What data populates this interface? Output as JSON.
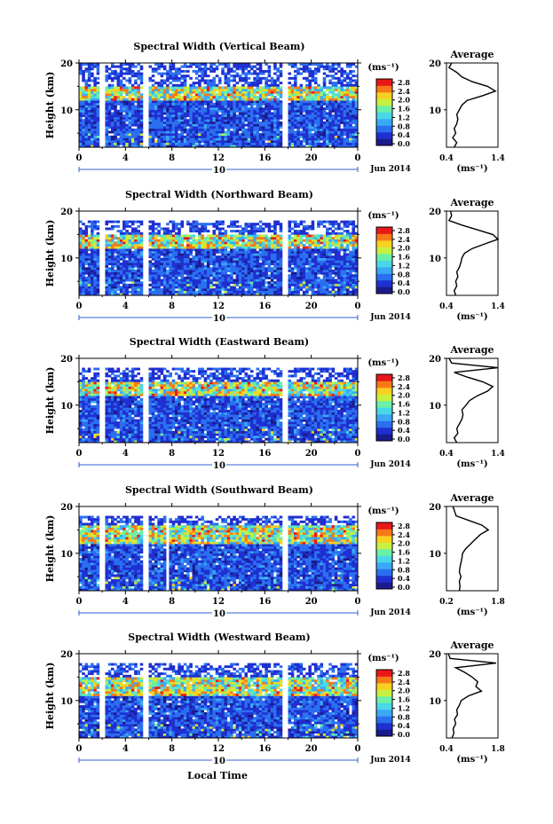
{
  "xaxis_label": "Local Time",
  "date_label": "Jun 2014",
  "day_label": "10",
  "x_ticks": [
    "0",
    "4",
    "8",
    "12",
    "16",
    "20",
    "0"
  ],
  "y_label": "Height (km)",
  "y_ticks": [
    "20",
    "10"
  ],
  "colorbar_unit": "(ms⁻¹)",
  "colorbar_ticks": [
    "2.8",
    "2.4",
    "2.0",
    "1.6",
    "1.2",
    "0.8",
    "0.4",
    "0.0"
  ],
  "avg_title": "Average",
  "avg_xunit": "(ms⁻¹)",
  "colors": {
    "colormap": [
      "#1a1a8a",
      "#1f2fd0",
      "#2a6ff0",
      "#3aa8f5",
      "#48d8e8",
      "#6af0a8",
      "#c8f040",
      "#f8d020",
      "#f87818",
      "#e81818"
    ],
    "background": "#ffffff",
    "axis": "#000000",
    "day_marker": "#3060d0"
  },
  "chart_data": [
    {
      "type": "heatmap",
      "title": "Spectral Width (Vertical Beam)",
      "xlabel": "Local Time",
      "ylabel": "Height (km)",
      "x_range_hours": [
        0,
        24
      ],
      "y_range_km": [
        2,
        20
      ],
      "color_range_ms": [
        0.0,
        3.0
      ],
      "data_gaps_hours": [
        [
          1.8,
          2.3
        ],
        [
          5.5,
          6.0
        ],
        [
          17.5,
          17.9
        ]
      ],
      "enhanced_layer_km": [
        12,
        15
      ],
      "top_of_data_km": 20,
      "average_profile": {
        "title": "Average",
        "xlabel": "(ms⁻¹)",
        "xlim": [
          0.4,
          1.4
        ],
        "xticks": [
          "0.4",
          "1.4"
        ],
        "height_km": [
          2,
          3,
          4,
          5,
          6,
          7,
          8,
          9,
          10,
          11,
          12,
          13,
          14,
          15,
          16,
          17,
          18,
          19,
          20
        ],
        "width_ms": [
          0.55,
          0.6,
          0.52,
          0.58,
          0.55,
          0.6,
          0.62,
          0.6,
          0.65,
          0.7,
          0.8,
          1.1,
          1.35,
          1.2,
          0.9,
          0.7,
          0.6,
          0.45,
          0.5
        ]
      }
    },
    {
      "type": "heatmap",
      "title": "Spectral Width (Northward Beam)",
      "xlabel": "Local Time",
      "ylabel": "Height (km)",
      "x_range_hours": [
        0,
        24
      ],
      "y_range_km": [
        2,
        20
      ],
      "color_range_ms": [
        0.0,
        3.0
      ],
      "data_gaps_hours": [
        [
          1.8,
          2.3
        ],
        [
          5.5,
          6.0
        ],
        [
          17.5,
          17.9
        ]
      ],
      "enhanced_layer_km": [
        12,
        15
      ],
      "top_of_data_km": 18,
      "average_profile": {
        "title": "Average",
        "xlabel": "(ms⁻¹)",
        "xlim": [
          0.4,
          1.4
        ],
        "xticks": [
          "0.4",
          "1.4"
        ],
        "height_km": [
          2,
          3,
          4,
          5,
          6,
          7,
          8,
          9,
          10,
          11,
          12,
          13,
          14,
          15,
          16,
          17,
          18,
          19,
          20
        ],
        "width_ms": [
          0.58,
          0.55,
          0.6,
          0.58,
          0.62,
          0.6,
          0.65,
          0.68,
          0.7,
          0.75,
          0.9,
          1.15,
          1.4,
          1.3,
          1.0,
          0.7,
          0.45,
          0.5,
          0.48
        ]
      }
    },
    {
      "type": "heatmap",
      "title": "Spectral Width (Eastward Beam)",
      "xlabel": "Local Time",
      "ylabel": "Height (km)",
      "x_range_hours": [
        0,
        24
      ],
      "y_range_km": [
        2,
        20
      ],
      "color_range_ms": [
        0.0,
        3.0
      ],
      "data_gaps_hours": [
        [
          1.8,
          2.3
        ],
        [
          5.5,
          6.0
        ],
        [
          17.5,
          17.9
        ]
      ],
      "enhanced_layer_km": [
        12,
        15
      ],
      "top_of_data_km": 18,
      "average_profile": {
        "title": "Average",
        "xlabel": "(ms⁻¹)",
        "xlim": [
          0.4,
          1.4
        ],
        "xticks": [
          "0.4",
          "1.4"
        ],
        "height_km": [
          2,
          3,
          4,
          5,
          6,
          7,
          8,
          9,
          10,
          11,
          12,
          13,
          14,
          15,
          16,
          17,
          18,
          19,
          20
        ],
        "width_ms": [
          0.6,
          0.55,
          0.62,
          0.6,
          0.65,
          0.7,
          0.72,
          0.7,
          0.78,
          0.85,
          1.0,
          1.2,
          1.3,
          1.1,
          0.8,
          0.55,
          1.4,
          0.5,
          0.45
        ]
      }
    },
    {
      "type": "heatmap",
      "title": "Spectral Width (Southward Beam)",
      "xlabel": "Local Time",
      "ylabel": "Height (km)",
      "x_range_hours": [
        0,
        24
      ],
      "y_range_km": [
        2,
        20
      ],
      "color_range_ms": [
        0.0,
        3.0
      ],
      "data_gaps_hours": [
        [
          1.8,
          2.3
        ],
        [
          5.5,
          6.0
        ],
        [
          7.4,
          7.7
        ],
        [
          17.5,
          17.9
        ]
      ],
      "enhanced_layer_km": [
        12,
        16
      ],
      "top_of_data_km": 18,
      "average_profile": {
        "title": "Average",
        "xlabel": "(ms⁻¹)",
        "xlim": [
          0.2,
          1.8
        ],
        "xticks": [
          "0.2",
          "1.8"
        ],
        "height_km": [
          2,
          3,
          4,
          5,
          6,
          7,
          8,
          9,
          10,
          11,
          12,
          13,
          14,
          15,
          16,
          17,
          18,
          19,
          20
        ],
        "width_ms": [
          0.6,
          0.62,
          0.6,
          0.65,
          0.6,
          0.62,
          0.65,
          0.68,
          0.7,
          0.8,
          0.95,
          1.1,
          1.25,
          1.5,
          1.3,
          0.9,
          0.5,
          0.45,
          0.4
        ]
      }
    },
    {
      "type": "heatmap",
      "title": "Spectral Width (Westward Beam)",
      "xlabel": "Local Time",
      "ylabel": "Height (km)",
      "x_range_hours": [
        0,
        24
      ],
      "y_range_km": [
        2,
        20
      ],
      "color_range_ms": [
        0.0,
        3.0
      ],
      "data_gaps_hours": [
        [
          1.8,
          2.3
        ],
        [
          5.5,
          6.0
        ],
        [
          17.5,
          17.9
        ]
      ],
      "enhanced_layer_km": [
        11,
        15
      ],
      "top_of_data_km": 18,
      "average_profile": {
        "title": "Average",
        "xlabel": "(ms⁻¹)",
        "xlim": [
          0.4,
          1.8
        ],
        "xticks": [
          "0.4",
          "1.8"
        ],
        "height_km": [
          2,
          3,
          4,
          5,
          6,
          7,
          8,
          9,
          10,
          11,
          12,
          13,
          14,
          15,
          16,
          17,
          18,
          19,
          20
        ],
        "width_ms": [
          0.55,
          0.6,
          0.58,
          0.65,
          0.62,
          0.7,
          0.68,
          0.75,
          0.8,
          1.0,
          1.35,
          1.2,
          1.25,
          1.1,
          0.9,
          0.65,
          1.75,
          0.5,
          0.45
        ]
      }
    }
  ]
}
